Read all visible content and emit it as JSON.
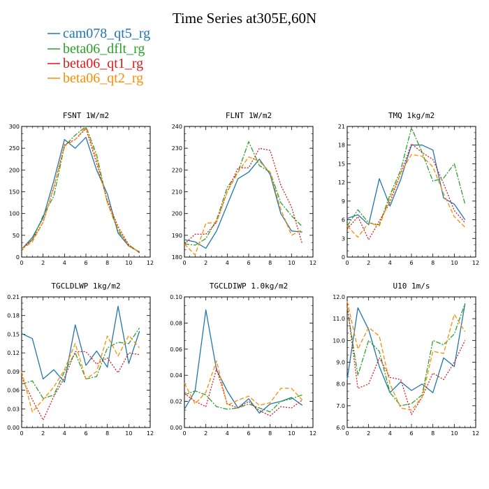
{
  "title": "Time Series at305E,60N",
  "legend": [
    {
      "name": "cam078_qt5_rg",
      "color": "#2176ae"
    },
    {
      "name": "beta06_dflt_rg",
      "color": "#2ca02c"
    },
    {
      "name": "beta06_qt1_rg",
      "color": "#e0191b"
    },
    {
      "name": "beta06_qt2_rg",
      "color": "#ff8c00"
    }
  ],
  "chart_data": [
    {
      "type": "line",
      "title": "FSNT 1W/m2",
      "x": [
        0,
        1,
        2,
        3,
        4,
        5,
        6,
        7,
        8,
        9,
        10,
        11
      ],
      "xlim": [
        0,
        12
      ],
      "xticks": [
        "0",
        "2",
        "4",
        "6",
        "8",
        "10",
        "12"
      ],
      "ylim": [
        0,
        300
      ],
      "yticks": [
        "0",
        "50",
        "100",
        "150",
        "200",
        "250",
        "300"
      ],
      "series": [
        {
          "name": "cam078_qt5_rg",
          "values": [
            18,
            45,
            90,
            175,
            270,
            250,
            275,
            200,
            145,
            55,
            25,
            12
          ]
        },
        {
          "name": "beta06_dflt_rg",
          "values": [
            18,
            40,
            95,
            140,
            255,
            280,
            300,
            235,
            125,
            60,
            28,
            10
          ]
        },
        {
          "name": "beta06_qt1_rg",
          "values": [
            18,
            40,
            80,
            160,
            258,
            270,
            295,
            215,
            130,
            70,
            28,
            10
          ]
        },
        {
          "name": "beta06_qt2_rg",
          "values": [
            18,
            35,
            80,
            160,
            255,
            270,
            298,
            225,
            125,
            65,
            25,
            12
          ]
        }
      ]
    },
    {
      "type": "line",
      "title": "FLNT 1W/m2",
      "x": [
        0,
        1,
        2,
        3,
        4,
        5,
        6,
        7,
        8,
        9,
        10,
        11
      ],
      "xlim": [
        0,
        12
      ],
      "xticks": [
        "0",
        "2",
        "4",
        "6",
        "8",
        "10",
        "12"
      ],
      "ylim": [
        180,
        240
      ],
      "yticks": [
        "180",
        "190",
        "200",
        "210",
        "220",
        "230",
        "240"
      ],
      "series": [
        {
          "name": "cam078_qt5_rg",
          "values": [
            188,
            187,
            184,
            192,
            204,
            216,
            219,
            225,
            218,
            200,
            192,
            191.5
          ]
        },
        {
          "name": "beta06_dflt_rg",
          "values": [
            186,
            185.5,
            188.5,
            197,
            212,
            219,
            233,
            222,
            219,
            205,
            199,
            194
          ]
        },
        {
          "name": "beta06_qt1_rg",
          "values": [
            186,
            190.5,
            190.5,
            196,
            210,
            221,
            221,
            230,
            229,
            213,
            203,
            186
          ]
        },
        {
          "name": "beta06_qt2_rg",
          "values": [
            186,
            181,
            195.5,
            196,
            210,
            219,
            226,
            224,
            219,
            202,
            190,
            192.5
          ]
        }
      ]
    },
    {
      "type": "line",
      "title": "TMQ 1kg/m2",
      "x": [
        0,
        1,
        2,
        3,
        4,
        5,
        6,
        7,
        8,
        9,
        10,
        11
      ],
      "xlim": [
        0,
        12
      ],
      "xticks": [
        "0",
        "2",
        "4",
        "6",
        "8",
        "10",
        "12"
      ],
      "ylim": [
        0,
        21
      ],
      "yticks": [
        "0",
        "3",
        "6",
        "9",
        "12",
        "15",
        "18",
        "21"
      ],
      "series": [
        {
          "name": "cam078_qt5_rg",
          "values": [
            6.2,
            6.8,
            5.2,
            12.6,
            8.2,
            12.5,
            18,
            18,
            17.2,
            9.5,
            8.5,
            6
          ]
        },
        {
          "name": "beta06_dflt_rg",
          "values": [
            5,
            7.6,
            5.5,
            5.2,
            10,
            14,
            20.8,
            16.8,
            12.2,
            12.7,
            15,
            8.5
          ]
        },
        {
          "name": "beta06_qt1_rg",
          "values": [
            4.5,
            6.5,
            2.8,
            5.8,
            8.8,
            13.5,
            18.2,
            16.8,
            15.7,
            11.8,
            7.5,
            5.5
          ]
        },
        {
          "name": "beta06_qt2_rg",
          "values": [
            5,
            3.2,
            5.5,
            5,
            9.5,
            13.5,
            16.5,
            16.2,
            14.5,
            10.2,
            6.5,
            4.8
          ]
        }
      ]
    },
    {
      "type": "line",
      "title": "TGCLDLWP 1kg/m2",
      "x": [
        0,
        1,
        2,
        3,
        4,
        5,
        6,
        7,
        8,
        9,
        10,
        11
      ],
      "xlim": [
        0,
        12
      ],
      "xticks": [
        "0",
        "2",
        "4",
        "6",
        "8",
        "10",
        "12"
      ],
      "ylim": [
        0,
        0.21
      ],
      "yticks": [
        "0.00",
        "0.03",
        "0.06",
        "0.09",
        "0.12",
        "0.15",
        "0.18",
        "0.21"
      ],
      "series": [
        {
          "name": "cam078_qt5_rg",
          "values": [
            0.151,
            0.143,
            0.078,
            0.093,
            0.073,
            0.165,
            0.1,
            0.123,
            0.097,
            0.195,
            0.103,
            0.155
          ]
        },
        {
          "name": "beta06_dflt_rg",
          "values": [
            0.07,
            0.075,
            0.047,
            0.052,
            0.09,
            0.12,
            0.078,
            0.082,
            0.128,
            0.137,
            0.135,
            0.16
          ]
        },
        {
          "name": "beta06_qt1_rg",
          "values": [
            0.08,
            0.045,
            0.012,
            0.05,
            0.08,
            0.122,
            0.122,
            0.102,
            0.112,
            0.088,
            0.12,
            0.117
          ]
        },
        {
          "name": "beta06_qt2_rg",
          "values": [
            0.09,
            0.025,
            0.045,
            0.065,
            0.093,
            0.135,
            0.078,
            0.09,
            0.147,
            0.115,
            0.148,
            0.128
          ]
        }
      ]
    },
    {
      "type": "line",
      "title": "TGCLDIWP 1.0kg/m2",
      "x": [
        0,
        1,
        2,
        3,
        4,
        5,
        6,
        7,
        8,
        9,
        10,
        11
      ],
      "xlim": [
        0,
        12
      ],
      "xticks": [
        "0",
        "2",
        "4",
        "6",
        "8",
        "10",
        "12"
      ],
      "ylim": [
        0,
        0.1
      ],
      "yticks": [
        "0.00",
        "0.02",
        "0.04",
        "0.06",
        "0.08",
        "0.10"
      ],
      "series": [
        {
          "name": "cam078_qt5_rg",
          "values": [
            0.014,
            0.028,
            0.09,
            0.044,
            0.028,
            0.015,
            0.022,
            0.011,
            0.018,
            0.02,
            0.023,
            0.017
          ]
        },
        {
          "name": "beta06_dflt_rg",
          "values": [
            0.025,
            0.028,
            0.025,
            0.016,
            0.014,
            0.015,
            0.018,
            0.015,
            0.012,
            0.02,
            0.022,
            0.025
          ]
        },
        {
          "name": "beta06_qt1_rg",
          "values": [
            0.026,
            0.02,
            0.016,
            0.045,
            0.018,
            0.015,
            0.02,
            0.013,
            0.009,
            0.016,
            0.015,
            0.021
          ]
        },
        {
          "name": "beta06_qt2_rg",
          "values": [
            0.034,
            0.018,
            0.027,
            0.051,
            0.017,
            0.021,
            0.024,
            0.017,
            0.019,
            0.03,
            0.03,
            0.021
          ]
        }
      ]
    },
    {
      "type": "line",
      "title": "U10 1m/s",
      "x": [
        0,
        1,
        2,
        3,
        4,
        5,
        6,
        7,
        8,
        9,
        10,
        11
      ],
      "xlim": [
        0,
        12
      ],
      "xticks": [
        "0",
        "2",
        "4",
        "6",
        "8",
        "10",
        "12"
      ],
      "ylim": [
        6,
        12
      ],
      "yticks": [
        "6.0",
        "7.0",
        "8.0",
        "9.0",
        "10.0",
        "11.0",
        "12.0"
      ],
      "series": [
        {
          "name": "cam078_qt5_rg",
          "values": [
            8.2,
            11.5,
            10.5,
            8.8,
            7.6,
            8.1,
            7.7,
            8,
            7.6,
            9.2,
            8.8,
            11.7
          ]
        },
        {
          "name": "beta06_dflt_rg",
          "values": [
            11.5,
            8.4,
            10,
            9.5,
            7.6,
            7,
            7.1,
            7.5,
            10,
            9.8,
            10.3,
            11.7
          ]
        },
        {
          "name": "beta06_qt1_rg",
          "values": [
            11.6,
            7.8,
            8,
            9.2,
            8.3,
            8.2,
            6.6,
            7.4,
            8.5,
            8.2,
            9,
            10
          ]
        },
        {
          "name": "beta06_qt2_rg",
          "values": [
            11.8,
            9.6,
            10.6,
            10.2,
            8,
            6.9,
            6.8,
            7.4,
            9.5,
            9.4,
            11.2,
            10.4
          ]
        }
      ]
    }
  ]
}
